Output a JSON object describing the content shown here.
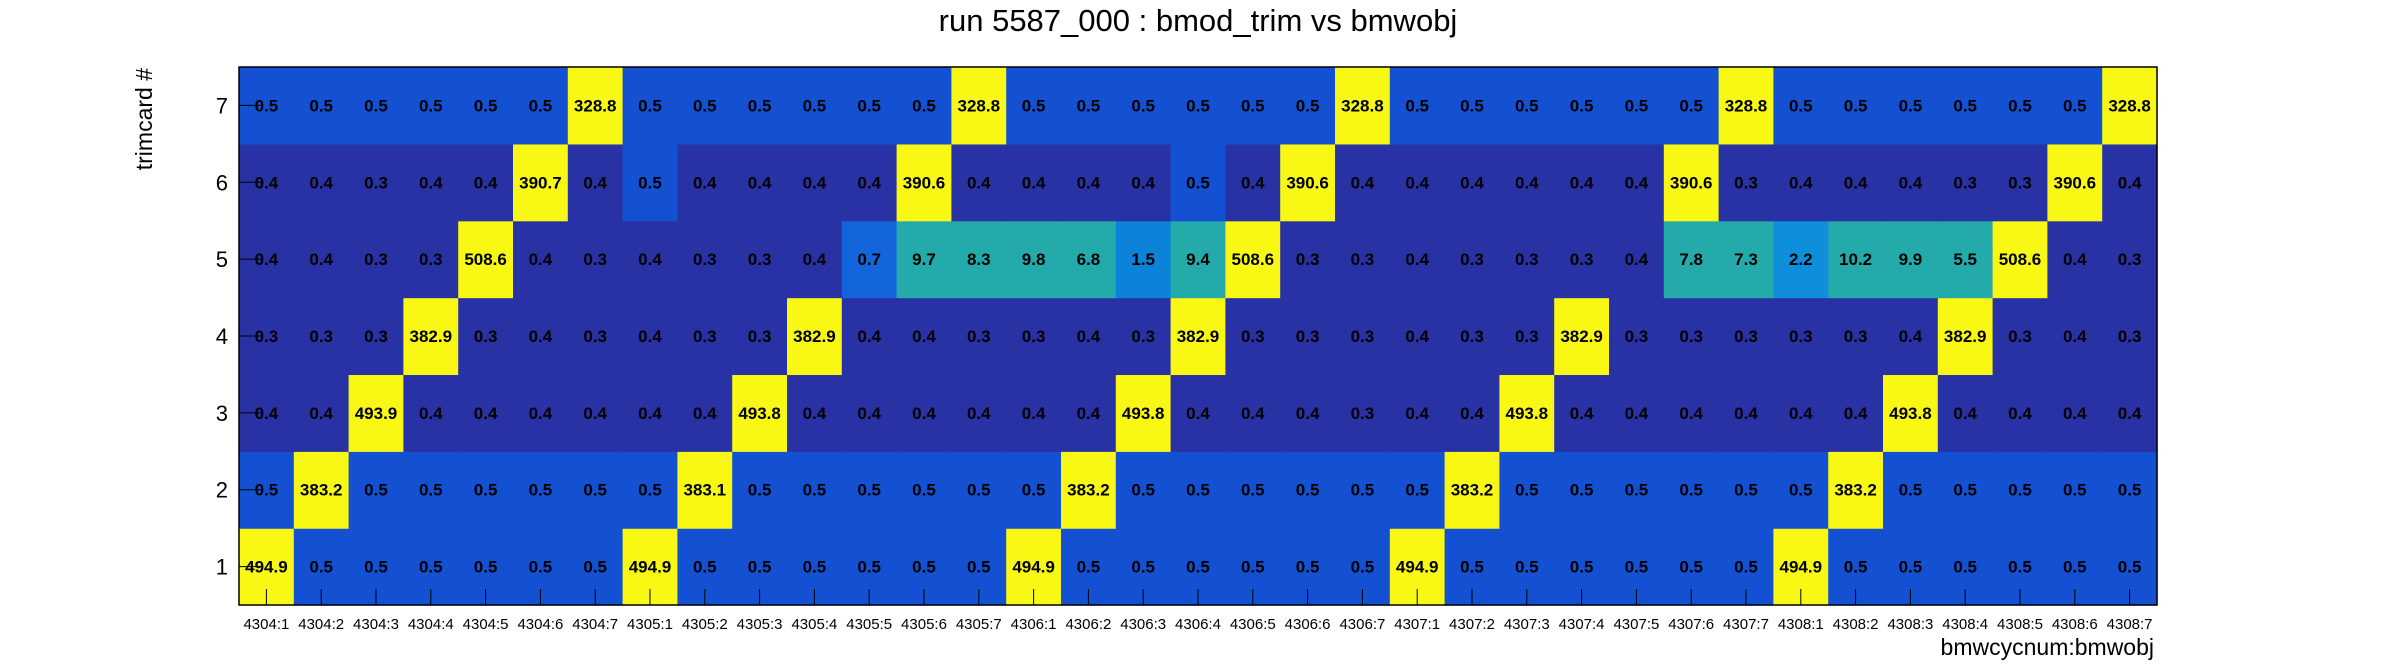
{
  "chart_data": {
    "type": "heatmap",
    "title": "run 5587_000 : bmod_trim vs bmwobj",
    "xlabel": "bmwcycnum:bmwobj",
    "ylabel": "trimcard #",
    "x_categories": [
      "4304:1",
      "4304:2",
      "4304:3",
      "4304:4",
      "4304:5",
      "4304:6",
      "4304:7",
      "4305:1",
      "4305:2",
      "4305:3",
      "4305:4",
      "4305:5",
      "4305:6",
      "4305:7",
      "4306:1",
      "4306:2",
      "4306:3",
      "4306:4",
      "4306:5",
      "4306:6",
      "4306:7",
      "4307:1",
      "4307:2",
      "4307:3",
      "4307:4",
      "4307:5",
      "4307:6",
      "4307:7",
      "4308:1",
      "4308:2",
      "4308:3",
      "4308:4",
      "4308:5",
      "4308:6",
      "4308:7"
    ],
    "y_categories": [
      "1",
      "2",
      "3",
      "4",
      "5",
      "6",
      "7"
    ],
    "values": [
      [
        "494.9",
        "0.5",
        "0.5",
        "0.5",
        "0.5",
        "0.5",
        "0.5",
        "494.9",
        "0.5",
        "0.5",
        "0.5",
        "0.5",
        "0.5",
        "0.5",
        "494.9",
        "0.5",
        "0.5",
        "0.5",
        "0.5",
        "0.5",
        "0.5",
        "494.9",
        "0.5",
        "0.5",
        "0.5",
        "0.5",
        "0.5",
        "0.5",
        "494.9",
        "0.5",
        "0.5",
        "0.5",
        "0.5",
        "0.5",
        "0.5"
      ],
      [
        "0.5",
        "383.2",
        "0.5",
        "0.5",
        "0.5",
        "0.5",
        "0.5",
        "0.5",
        "383.1",
        "0.5",
        "0.5",
        "0.5",
        "0.5",
        "0.5",
        "0.5",
        "383.2",
        "0.5",
        "0.5",
        "0.5",
        "0.5",
        "0.5",
        "0.5",
        "383.2",
        "0.5",
        "0.5",
        "0.5",
        "0.5",
        "0.5",
        "0.5",
        "383.2",
        "0.5",
        "0.5",
        "0.5",
        "0.5",
        "0.5"
      ],
      [
        "0.4",
        "0.4",
        "493.9",
        "0.4",
        "0.4",
        "0.4",
        "0.4",
        "0.4",
        "0.4",
        "493.8",
        "0.4",
        "0.4",
        "0.4",
        "0.4",
        "0.4",
        "0.4",
        "493.8",
        "0.4",
        "0.4",
        "0.4",
        "0.3",
        "0.4",
        "0.4",
        "493.8",
        "0.4",
        "0.4",
        "0.4",
        "0.4",
        "0.4",
        "0.4",
        "493.8",
        "0.4",
        "0.4",
        "0.4",
        "0.4"
      ],
      [
        "0.3",
        "0.3",
        "0.3",
        "382.9",
        "0.3",
        "0.4",
        "0.3",
        "0.4",
        "0.3",
        "0.3",
        "382.9",
        "0.4",
        "0.4",
        "0.3",
        "0.3",
        "0.4",
        "0.3",
        "382.9",
        "0.3",
        "0.3",
        "0.3",
        "0.4",
        "0.3",
        "0.3",
        "382.9",
        "0.3",
        "0.3",
        "0.3",
        "0.3",
        "0.3",
        "0.4",
        "382.9",
        "0.3",
        "0.4",
        "0.3"
      ],
      [
        "0.4",
        "0.4",
        "0.3",
        "0.3",
        "508.6",
        "0.4",
        "0.3",
        "0.4",
        "0.3",
        "0.3",
        "0.4",
        "0.7",
        "9.7",
        "8.3",
        "9.8",
        "6.8",
        "1.5",
        "9.4",
        "508.6",
        "0.3",
        "0.3",
        "0.4",
        "0.3",
        "0.3",
        "0.3",
        "0.4",
        "7.8",
        "7.3",
        "2.2",
        "10.2",
        "9.9",
        "5.5",
        "508.6",
        "0.4",
        "0.3"
      ],
      [
        "0.4",
        "0.4",
        "0.3",
        "0.4",
        "0.4",
        "390.7",
        "0.4",
        "0.5",
        "0.4",
        "0.4",
        "0.4",
        "0.4",
        "390.6",
        "0.4",
        "0.4",
        "0.4",
        "0.4",
        "0.5",
        "0.4",
        "390.6",
        "0.4",
        "0.4",
        "0.4",
        "0.4",
        "0.4",
        "0.4",
        "390.6",
        "0.3",
        "0.4",
        "0.4",
        "0.4",
        "0.3",
        "0.3",
        "390.6",
        "0.4"
      ],
      [
        "0.5",
        "0.5",
        "0.5",
        "0.5",
        "0.5",
        "0.5",
        "328.8",
        "0.5",
        "0.5",
        "0.5",
        "0.5",
        "0.5",
        "0.5",
        "328.8",
        "0.5",
        "0.5",
        "0.5",
        "0.5",
        "0.5",
        "0.5",
        "328.8",
        "0.5",
        "0.5",
        "0.5",
        "0.5",
        "0.5",
        "0.5",
        "328.8",
        "0.5",
        "0.5",
        "0.5",
        "0.5",
        "0.5",
        "0.5",
        "328.8"
      ]
    ],
    "palette": {
      "dark_blue": "#2832a4",
      "blue": "#1450d2",
      "mid_blue": "#1464dc",
      "azure": "#0c82d8",
      "cyan_blue": "#0f8fdb",
      "teal": "#25aaab",
      "yellow": "#f8f814",
      "frame": "#000000"
    },
    "grid": false,
    "legend": "none"
  }
}
